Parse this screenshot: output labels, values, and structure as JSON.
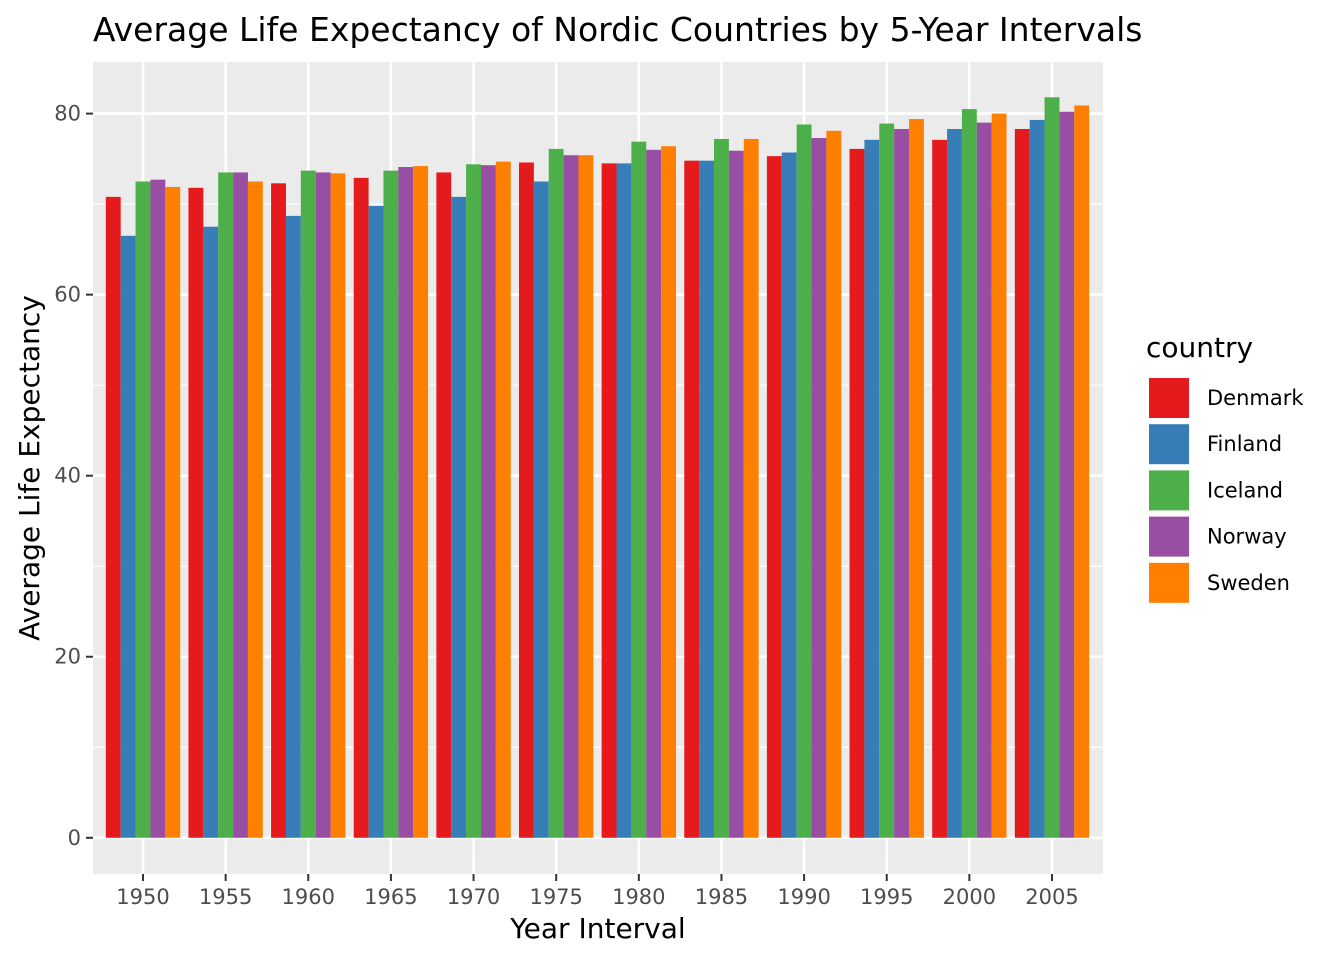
{
  "chart_data": {
    "type": "bar",
    "title": "Average Life Expectancy of Nordic Countries by 5-Year Intervals",
    "xlabel": "Year Interval",
    "ylabel": "Average Life Expectancy",
    "categories": [
      "1950",
      "1955",
      "1960",
      "1965",
      "1970",
      "1975",
      "1980",
      "1985",
      "1990",
      "1995",
      "2000",
      "2005"
    ],
    "yticks": [
      "0",
      "20",
      "40",
      "60",
      "80"
    ],
    "ylim": [
      -4,
      85.7
    ],
    "grid": true,
    "legend": {
      "title": "country",
      "position": "right"
    },
    "series": [
      {
        "name": "Denmark",
        "color": "#E41A1C",
        "values": [
          70.8,
          71.8,
          72.3,
          72.9,
          73.5,
          74.6,
          74.5,
          74.8,
          75.3,
          76.1,
          77.1,
          78.3
        ]
      },
      {
        "name": "Finland",
        "color": "#377EB8",
        "values": [
          66.5,
          67.5,
          68.7,
          69.8,
          70.8,
          72.5,
          74.5,
          74.8,
          75.7,
          77.1,
          78.3,
          79.3
        ]
      },
      {
        "name": "Iceland",
        "color": "#4DAF4A",
        "values": [
          72.5,
          73.5,
          73.7,
          73.7,
          74.4,
          76.1,
          76.9,
          77.2,
          78.8,
          78.9,
          80.5,
          81.8
        ]
      },
      {
        "name": "Norway",
        "color": "#984EA3",
        "values": [
          72.7,
          73.5,
          73.5,
          74.1,
          74.3,
          75.4,
          76.0,
          75.9,
          77.3,
          78.3,
          79.0,
          80.2
        ]
      },
      {
        "name": "Sweden",
        "color": "#FF7F00",
        "values": [
          71.9,
          72.5,
          73.4,
          74.2,
          74.7,
          75.4,
          76.4,
          77.2,
          78.1,
          79.4,
          80.0,
          80.9
        ]
      }
    ]
  }
}
